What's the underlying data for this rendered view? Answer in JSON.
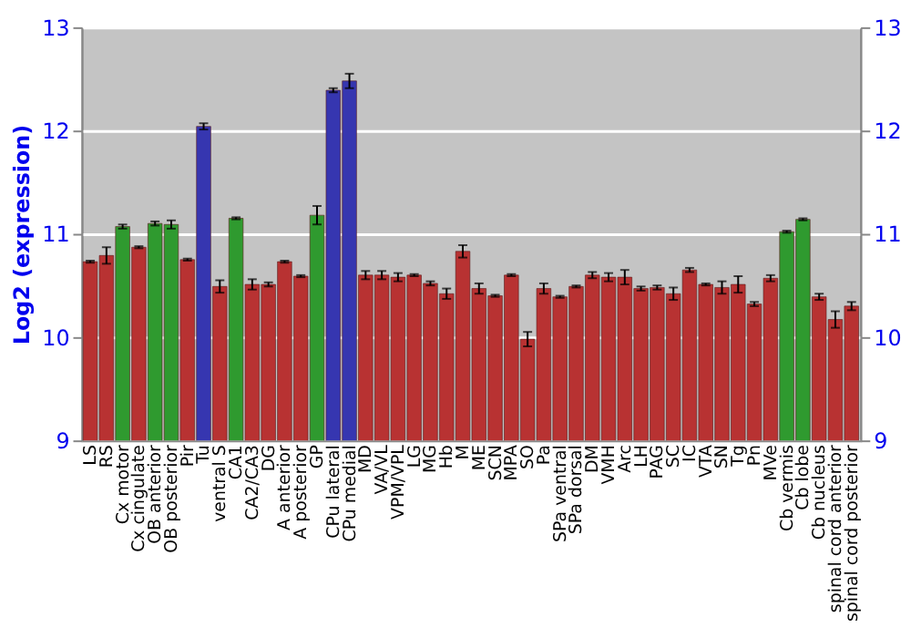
{
  "chart_data": {
    "type": "bar",
    "ylabel": "Log2 (expression)",
    "categories": [
      "LS",
      "RS",
      "Cx motor",
      "Cx cingulate",
      "OB anterior",
      "OB posterior",
      "Pir",
      "Tu",
      "ventral S",
      "CA1",
      "CA2/CA3",
      "DG",
      "A anterior",
      "A posterior",
      "GP",
      "CPu lateral",
      "CPu medial",
      "MD",
      "VA/VL",
      "VPM/VPL",
      "LG",
      "MG",
      "Hb",
      "M",
      "ME",
      "SCN",
      "MPA",
      "SO",
      "Pa",
      "SPa ventral",
      "SPa dorsal",
      "DM",
      "VMH",
      "Arc",
      "LH",
      "PAG",
      "SC",
      "IC",
      "VTA",
      "SN",
      "Tg",
      "Pn",
      "MVe",
      "Cb vermis",
      "Cb lobe",
      "Cb nucleus",
      "spinal cord anterior",
      "spinal cord posterior"
    ],
    "values": [
      10.73,
      10.79,
      11.07,
      10.87,
      11.1,
      11.09,
      10.75,
      12.04,
      10.49,
      11.15,
      10.51,
      10.51,
      10.73,
      10.59,
      11.18,
      12.39,
      12.48,
      10.6,
      10.6,
      10.58,
      10.6,
      10.52,
      10.42,
      10.83,
      10.47,
      10.4,
      10.6,
      9.98,
      10.47,
      10.39,
      10.49,
      10.6,
      10.58,
      10.58,
      10.47,
      10.48,
      10.42,
      10.65,
      10.51,
      10.48,
      10.51,
      10.32,
      10.57,
      11.02,
      11.14,
      10.39,
      10.17,
      10.3
    ],
    "errors": [
      0.01,
      0.08,
      0.02,
      0.01,
      0.02,
      0.04,
      0.01,
      0.03,
      0.06,
      0.01,
      0.05,
      0.02,
      0.01,
      0.01,
      0.09,
      0.02,
      0.07,
      0.04,
      0.04,
      0.04,
      0.01,
      0.02,
      0.05,
      0.06,
      0.05,
      0.01,
      0.01,
      0.07,
      0.05,
      0.01,
      0.01,
      0.03,
      0.04,
      0.07,
      0.02,
      0.02,
      0.06,
      0.02,
      0.01,
      0.06,
      0.08,
      0.02,
      0.03,
      0.01,
      0.01,
      0.03,
      0.08,
      0.04
    ],
    "colors": [
      "#b83232",
      "#b83232",
      "#2f9a2f",
      "#b83232",
      "#2f9a2f",
      "#2f9a2f",
      "#b83232",
      "#3636b0",
      "#b83232",
      "#2f9a2f",
      "#b83232",
      "#b83232",
      "#b83232",
      "#b83232",
      "#2f9a2f",
      "#3636b0",
      "#3636b0",
      "#b83232",
      "#b83232",
      "#b83232",
      "#b83232",
      "#b83232",
      "#b83232",
      "#b83232",
      "#b83232",
      "#b83232",
      "#b83232",
      "#b83232",
      "#b83232",
      "#b83232",
      "#b83232",
      "#b83232",
      "#b83232",
      "#b83232",
      "#b83232",
      "#b83232",
      "#b83232",
      "#b83232",
      "#b83232",
      "#b83232",
      "#b83232",
      "#b83232",
      "#b83232",
      "#2f9a2f",
      "#2f9a2f",
      "#b83232",
      "#b83232",
      "#b83232"
    ],
    "ylim": [
      9,
      13
    ],
    "yticks": [
      9,
      10,
      11,
      12,
      13
    ],
    "y2lim": [
      9,
      13
    ],
    "y2ticks": [
      9,
      10,
      11,
      12,
      13
    ],
    "grid": "y"
  }
}
